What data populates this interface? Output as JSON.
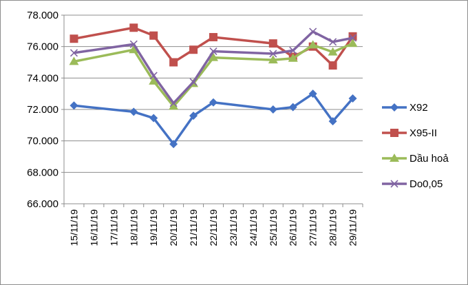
{
  "chart_data": {
    "type": "line",
    "title": "",
    "xlabel": "",
    "ylabel": "",
    "ylim": [
      66000,
      78000
    ],
    "yticks": [
      66000,
      68000,
      70000,
      72000,
      74000,
      76000,
      78000
    ],
    "ytick_labels": [
      "66.000",
      "68.000",
      "70.000",
      "72.000",
      "74.000",
      "76.000",
      "78.000"
    ],
    "grid": "horizontal",
    "legend_position": "right",
    "categories": [
      "15/11/19",
      "16/11/19",
      "17/11/19",
      "18/11/19",
      "19/11/19",
      "20/11/19",
      "21/11/19",
      "22/11/19",
      "23/11/19",
      "24/11/19",
      "25/11/19",
      "26/11/19",
      "27/11/19",
      "28/11/19",
      "29/11/19"
    ],
    "series": [
      {
        "name": "X92",
        "color": "#4472C4",
        "marker": "diamond",
        "values": [
          72250,
          null,
          null,
          71850,
          71450,
          69800,
          71600,
          72450,
          null,
          null,
          72000,
          72150,
          73000,
          71250,
          72700
        ]
      },
      {
        "name": "X95-II",
        "color": "#C0504D",
        "marker": "square",
        "values": [
          76500,
          null,
          null,
          77200,
          76700,
          75000,
          75800,
          76600,
          null,
          null,
          76200,
          75350,
          76000,
          74800,
          76650
        ]
      },
      {
        "name": "Dầu hoả",
        "color": "#9BBB59",
        "marker": "triangle",
        "values": [
          75050,
          null,
          null,
          75800,
          73800,
          72200,
          73650,
          75300,
          null,
          null,
          75150,
          75250,
          76100,
          75650,
          76200
        ]
      },
      {
        "name": "Do0,05",
        "color": "#8064A2",
        "marker": "x",
        "values": [
          75600,
          null,
          null,
          76150,
          74150,
          72400,
          73750,
          75700,
          null,
          null,
          75550,
          75750,
          76950,
          76300,
          76550
        ]
      }
    ]
  }
}
